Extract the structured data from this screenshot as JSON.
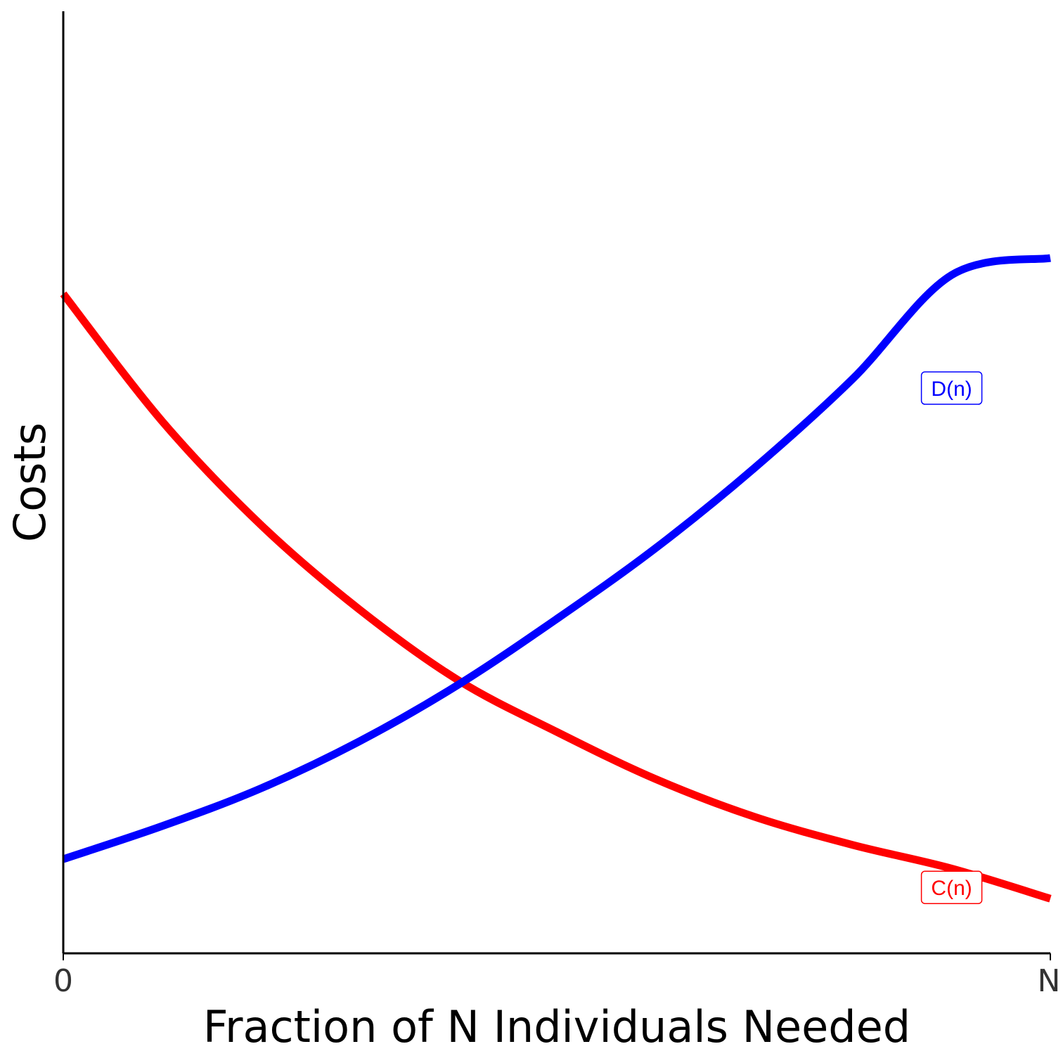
{
  "chart_data": {
    "type": "line",
    "title": "",
    "xlabel": "Fraction of N Individuals Needed",
    "ylabel": "Costs",
    "x_ticks": [
      "0",
      "N"
    ],
    "xlim": [
      0,
      1
    ],
    "ylim": [
      0,
      1
    ],
    "grid": false,
    "legend": "none",
    "series": [
      {
        "name": "C(n)",
        "color": "#ff0000",
        "x": [
          0,
          0.1,
          0.2,
          0.3,
          0.4,
          0.5,
          0.6,
          0.7,
          0.8,
          0.9,
          1.0
        ],
        "y": [
          0.7,
          0.565,
          0.455,
          0.365,
          0.29,
          0.235,
          0.185,
          0.145,
          0.115,
          0.09,
          0.058
        ]
      },
      {
        "name": "D(n)",
        "color": "#0000ff",
        "x": [
          0,
          0.1,
          0.2,
          0.3,
          0.4,
          0.5,
          0.6,
          0.7,
          0.8,
          0.9,
          1.0
        ],
        "y": [
          0.1,
          0.135,
          0.175,
          0.225,
          0.285,
          0.355,
          0.43,
          0.515,
          0.61,
          0.72,
          0.738
        ]
      }
    ],
    "annotations": [
      {
        "text": "D(n)",
        "color": "#0000ff",
        "x": 0.9,
        "y": 0.6
      },
      {
        "text": "C(n)",
        "color": "#ff0000",
        "x": 0.9,
        "y": 0.07
      }
    ]
  }
}
